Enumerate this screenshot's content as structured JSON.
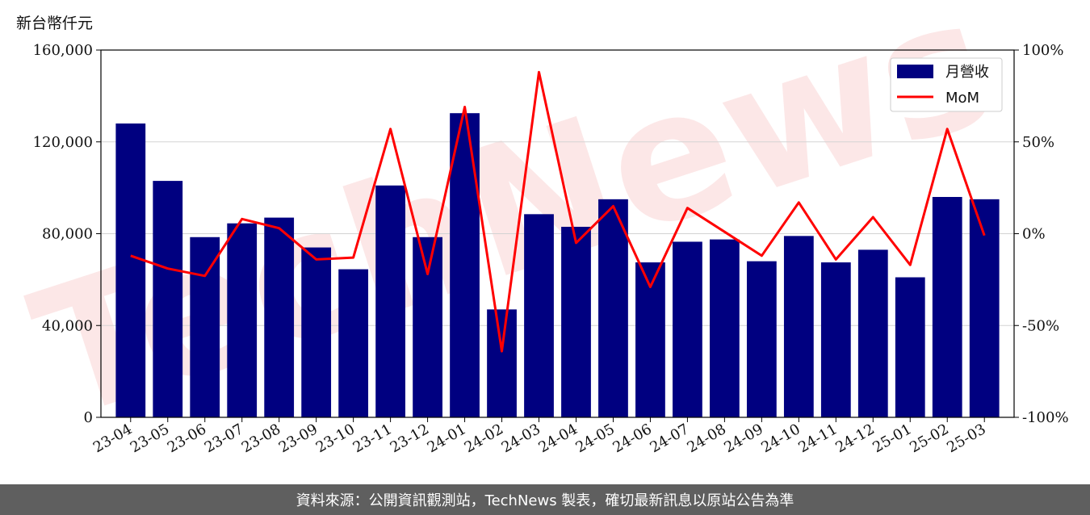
{
  "unit_label": "新台幣仟元",
  "footer_text": "資料來源：公開資訊觀測站，TechNews 製表，確切最新訊息以原站公告為準",
  "colors": {
    "bar": "#000080",
    "line": "#ff0000",
    "grid": "#d3d3d3",
    "footer_bg": "#5f5f5f"
  },
  "chart_data": {
    "type": "bar",
    "categories": [
      "23-04",
      "23-05",
      "23-06",
      "23-07",
      "23-08",
      "23-09",
      "23-10",
      "23-11",
      "23-12",
      "24-01",
      "24-02",
      "24-03",
      "24-04",
      "24-05",
      "24-06",
      "24-07",
      "24-08",
      "24-09",
      "24-10",
      "24-11",
      "24-12",
      "25-01",
      "25-02",
      "25-03"
    ],
    "series": [
      {
        "name": "月營收",
        "type": "bar",
        "axis": "left",
        "values": [
          128000,
          103000,
          78500,
          84500,
          87000,
          74000,
          64500,
          101000,
          78500,
          132500,
          47000,
          88500,
          83000,
          95000,
          67500,
          76500,
          77500,
          68000,
          79000,
          67500,
          73000,
          61000,
          96000,
          95000
        ]
      },
      {
        "name": "MoM",
        "type": "line",
        "axis": "right",
        "values": [
          -12,
          -19,
          -23,
          8,
          3,
          -14,
          -13,
          57,
          -22,
          69,
          -64,
          88,
          -5,
          15,
          -29,
          14,
          1,
          -12,
          17,
          -14,
          9,
          -17,
          57,
          -1
        ]
      }
    ],
    "y_left": {
      "min": 0,
      "max": 160000,
      "ticks": [
        "0",
        "40,000",
        "80,000",
        "120,000",
        "160,000"
      ]
    },
    "y_right": {
      "min": -100,
      "max": 100,
      "ticks": [
        "-100%",
        "-50%",
        "0%",
        "50%",
        "100%"
      ]
    },
    "grid": true,
    "legend_position": "top-right"
  }
}
